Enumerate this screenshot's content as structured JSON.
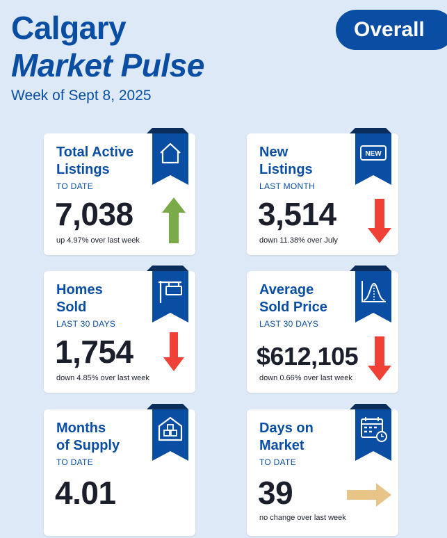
{
  "header": {
    "title_line1": "Calgary",
    "title_line2": "Market Pulse",
    "subtitle": "Week of Sept 8, 2025",
    "badge": "Overall"
  },
  "colors": {
    "brand": "#0a4ea3",
    "up": "#7bab48",
    "down": "#ef4136",
    "neutral": "#e8c488"
  },
  "cards": [
    {
      "label": "Total Active\nListings",
      "period": "TO DATE",
      "value": "7,038",
      "change": "up 4.97% over last week",
      "icon": "house-icon",
      "trend": "up"
    },
    {
      "label": "New\nListings",
      "period": "LAST MONTH",
      "value": "3,514",
      "change": "down 11.38% over July",
      "icon": "new-badge-icon",
      "trend": "down"
    },
    {
      "label": "Homes\nSold",
      "period": "LAST 30 DAYS",
      "value": "1,754",
      "change": "down 4.85% over last week",
      "icon": "sold-sign-icon",
      "trend": "down"
    },
    {
      "label": "Average\nSold Price",
      "period": "LAST 30 DAYS",
      "value": "$612,105",
      "change": "down 0.66% over last week",
      "icon": "distribution-chart-icon",
      "trend": "down"
    },
    {
      "label": "Months\nof Supply",
      "period": "TO DATE",
      "value": "4.01",
      "change": "",
      "icon": "warehouse-icon",
      "trend": "none"
    },
    {
      "label": "Days on\nMarket",
      "period": "TO DATE",
      "value": "39",
      "change": "no change over last week",
      "icon": "calendar-clock-icon",
      "trend": "neutral"
    }
  ],
  "icon_badge_text": "NEW"
}
